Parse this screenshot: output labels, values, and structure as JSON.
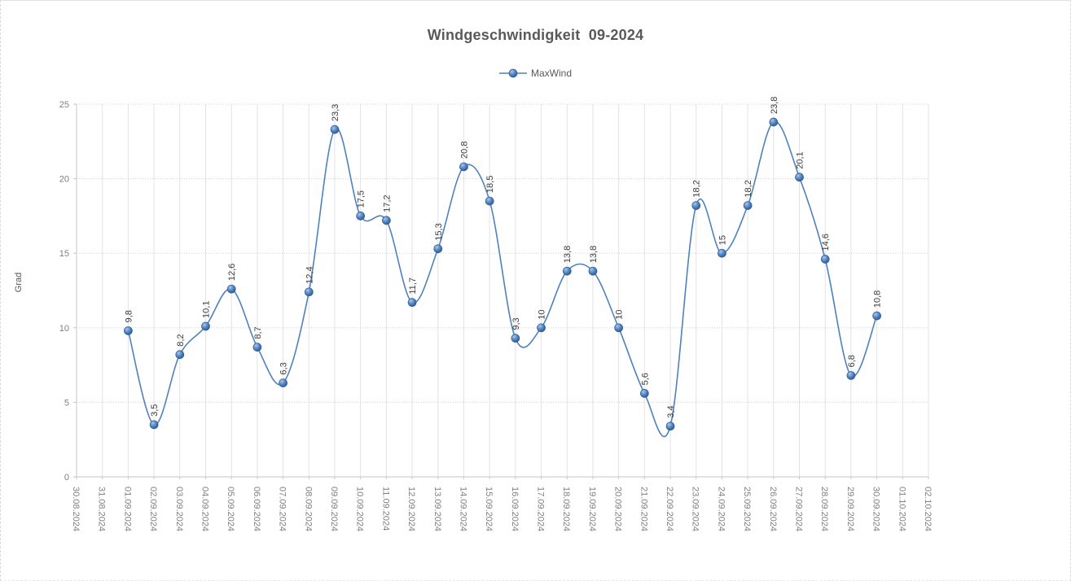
{
  "title": "Windgeschwindigkeit  09-2024",
  "legend": {
    "label": "MaxWind"
  },
  "y_axis_title": "Grad",
  "colors": {
    "line": "#4f81bd",
    "marker_highlight": "#a9c7e8",
    "marker_mid": "#4a7ab8",
    "marker_dark": "#2b5488",
    "marker_edge": "#2e5c93",
    "grid_vertical": "#e3e3e3",
    "grid_horizontal": "#cfcfcf",
    "axis_line": "#c6c6c6",
    "tick_label": "#7f7f7f",
    "data_label": "#3b3b3b",
    "title_text": "#595959"
  },
  "chart_data": {
    "type": "line",
    "title": "Windgeschwindigkeit  09-2024",
    "xlabel": "",
    "ylabel": "Grad",
    "ylim": [
      0,
      25
    ],
    "yticks": [
      0,
      5,
      10,
      15,
      20,
      25
    ],
    "grid": "both",
    "smooth": true,
    "legend_position": "top-center",
    "decimal_separator": ",",
    "categories": [
      "30.08.2024",
      "31.08.2024",
      "01.09.2024",
      "02.09.2024",
      "03.09.2024",
      "04.09.2024",
      "05.09.2024",
      "06.09.2024",
      "07.09.2024",
      "08.09.2024",
      "09.09.2024",
      "10.09.2024",
      "11.09.2024",
      "12.09.2024",
      "13.09.2024",
      "14.09.2024",
      "15.09.2024",
      "16.09.2024",
      "17.09.2024",
      "18.09.2024",
      "19.09.2024",
      "20.09.2024",
      "21.09.2024",
      "22.09.2024",
      "23.09.2024",
      "24.09.2024",
      "25.09.2024",
      "26.09.2024",
      "27.09.2024",
      "28.09.2024",
      "29.09.2024",
      "30.09.2024",
      "01.10.2024",
      "02.10.2024"
    ],
    "series": [
      {
        "name": "MaxWind",
        "values": [
          null,
          null,
          9.8,
          3.5,
          8.2,
          10.1,
          12.6,
          8.7,
          6.3,
          12.4,
          23.3,
          17.5,
          17.2,
          11.7,
          15.3,
          20.8,
          18.5,
          9.3,
          10,
          13.8,
          13.8,
          10,
          5.6,
          3.4,
          18.2,
          15,
          18.2,
          23.8,
          20.1,
          14.6,
          6.8,
          10.8,
          null,
          null
        ]
      }
    ]
  }
}
